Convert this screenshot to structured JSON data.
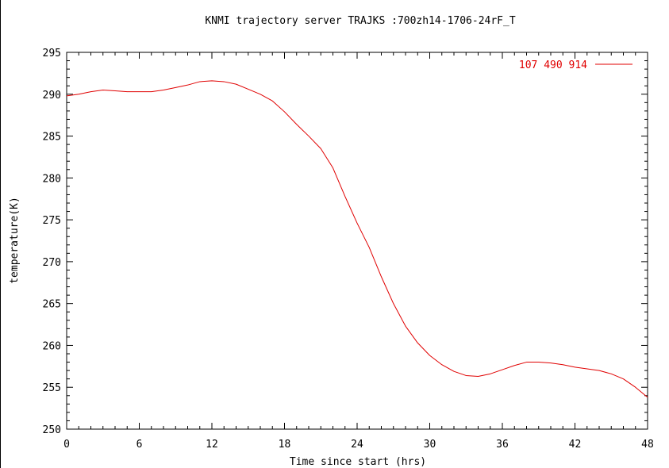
{
  "chart_data": {
    "type": "line",
    "title": "KNMI trajectory server TRAJKS :700zh14-1706-24rF_T",
    "xlabel": "Time since start (hrs)",
    "ylabel": "temperature(K)",
    "xlim": [
      0,
      48
    ],
    "ylim": [
      250,
      295
    ],
    "xticks": [
      0,
      6,
      12,
      18,
      24,
      30,
      36,
      42,
      48
    ],
    "yticks": [
      250,
      255,
      260,
      265,
      270,
      275,
      280,
      285,
      290,
      295
    ],
    "grid": false,
    "legend_position": "top-right",
    "series": [
      {
        "name": "107 490 914",
        "color": "#e00000",
        "x": [
          0,
          1,
          2,
          3,
          4,
          5,
          6,
          7,
          8,
          9,
          10,
          11,
          12,
          13,
          14,
          15,
          16,
          17,
          18,
          19,
          20,
          21,
          22,
          23,
          24,
          25,
          26,
          27,
          28,
          29,
          30,
          31,
          32,
          33,
          34,
          35,
          36,
          37,
          38,
          39,
          40,
          41,
          42,
          43,
          44,
          45,
          46,
          47,
          48
        ],
        "y": [
          289.8,
          290.0,
          290.3,
          290.5,
          290.4,
          290.3,
          290.3,
          290.3,
          290.5,
          290.8,
          291.1,
          291.5,
          291.6,
          291.5,
          291.2,
          290.6,
          290.0,
          289.2,
          287.9,
          286.4,
          285.0,
          283.5,
          281.2,
          277.8,
          274.6,
          271.7,
          268.2,
          265.0,
          262.3,
          260.3,
          258.8,
          257.7,
          256.9,
          256.4,
          256.3,
          256.6,
          257.1,
          257.6,
          258.0,
          258.0,
          257.9,
          257.7,
          257.4,
          257.2,
          257.0,
          256.6,
          256.0,
          255.0,
          253.8
        ]
      }
    ]
  }
}
